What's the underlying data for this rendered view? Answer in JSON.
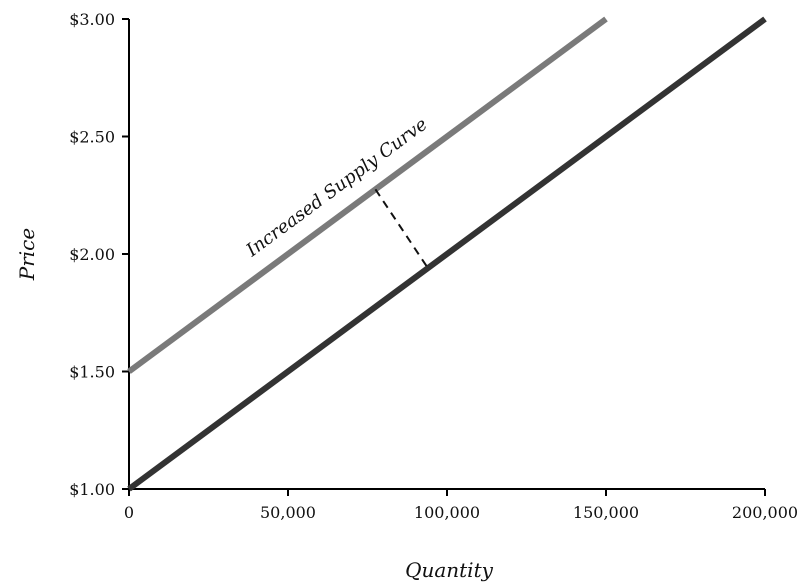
{
  "chart_data": {
    "type": "line",
    "xlabel": "Quantity",
    "ylabel": "Price",
    "xlim": [
      0,
      200000
    ],
    "ylim": [
      1.0,
      3.0
    ],
    "x_ticks": [
      0,
      50000,
      100000,
      150000,
      200000
    ],
    "x_tick_labels": [
      "0",
      "50,000",
      "100,000",
      "150,000",
      "200,000"
    ],
    "y_ticks": [
      1.0,
      1.5,
      2.0,
      2.5,
      3.0
    ],
    "y_tick_labels": [
      "$1.00",
      "$1.50",
      "$2.00",
      "$2.50",
      "$3.00"
    ],
    "grid": false,
    "series": [
      {
        "x": [
          0,
          150000
        ],
        "y": [
          1.5,
          3.0
        ],
        "color": "#7a7a7a"
      },
      {
        "x": [
          0,
          200000
        ],
        "y": [
          1.0,
          3.0
        ],
        "color": "#333333"
      }
    ],
    "annotations": [
      {
        "text": "Increased Supply Curve"
      }
    ],
    "shift_indicator": {
      "style": "dashed",
      "from": [
        77500,
        2.275
      ],
      "to": [
        94000,
        1.94
      ],
      "color": "#111111"
    }
  }
}
